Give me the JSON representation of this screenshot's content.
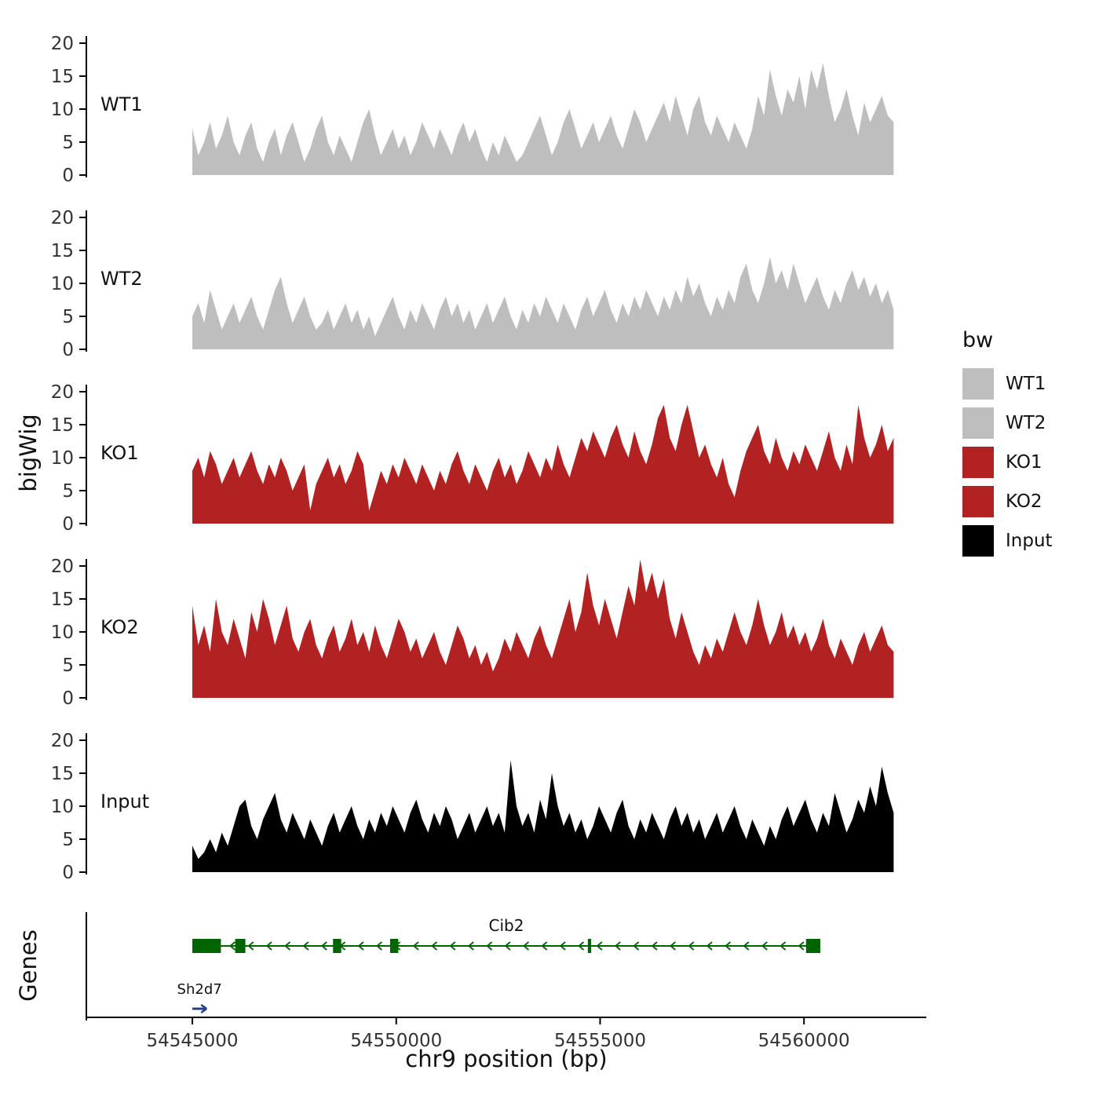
{
  "labels": {
    "y_axis": "bigWig",
    "genes_axis": "Genes",
    "x_axis": "chr9 position (bp)"
  },
  "legend": {
    "title": "bw",
    "items": [
      {
        "label": "WT1",
        "color": "#bebebe"
      },
      {
        "label": "WT2",
        "color": "#bebebe"
      },
      {
        "label": "KO1",
        "color": "#b22222"
      },
      {
        "label": "KO2",
        "color": "#b22222"
      },
      {
        "label": "Input",
        "color": "#000000"
      }
    ]
  },
  "chart_data": {
    "type": "area",
    "title": "",
    "xlabel": "chr9 position (bp)",
    "ylabel": "bigWig",
    "genes_label": "Genes",
    "legend_title": "bw",
    "panel_bp_range": [
      54542400,
      54563000
    ],
    "x_domain_bp": [
      54545000,
      54562200
    ],
    "x_ticks": [
      54545000,
      54550000,
      54555000,
      54560000
    ],
    "y_ticks": [
      0,
      5,
      10,
      15,
      20
    ],
    "ylim": [
      0,
      22
    ],
    "tracks": [
      {
        "name": "WT1",
        "color": "#bebebe",
        "values": [
          7,
          3,
          5,
          8,
          4,
          6,
          9,
          5,
          3,
          6,
          8,
          4,
          2,
          5,
          7,
          3,
          6,
          8,
          5,
          2,
          4,
          7,
          9,
          5,
          3,
          6,
          4,
          2,
          5,
          8,
          10,
          6,
          3,
          5,
          7,
          4,
          6,
          3,
          5,
          8,
          6,
          4,
          7,
          5,
          3,
          6,
          8,
          5,
          7,
          4,
          2,
          5,
          3,
          6,
          4,
          2,
          3,
          5,
          7,
          9,
          6,
          3,
          5,
          8,
          10,
          7,
          4,
          6,
          8,
          5,
          7,
          9,
          6,
          4,
          7,
          10,
          8,
          5,
          7,
          9,
          11,
          8,
          12,
          9,
          6,
          10,
          12,
          8,
          6,
          9,
          7,
          5,
          8,
          6,
          4,
          7,
          12,
          9,
          16,
          12,
          9,
          13,
          11,
          15,
          10,
          16,
          13,
          17,
          12,
          8,
          10,
          13,
          9,
          6,
          11,
          8,
          10,
          12,
          9,
          8
        ]
      },
      {
        "name": "WT2",
        "color": "#bebebe",
        "values": [
          5,
          7,
          4,
          9,
          6,
          3,
          5,
          7,
          4,
          6,
          8,
          5,
          3,
          6,
          9,
          11,
          7,
          4,
          6,
          8,
          5,
          3,
          4,
          6,
          3,
          5,
          7,
          4,
          6,
          3,
          5,
          2,
          4,
          6,
          8,
          5,
          3,
          6,
          4,
          7,
          5,
          3,
          6,
          8,
          5,
          7,
          4,
          6,
          3,
          5,
          7,
          4,
          6,
          8,
          5,
          3,
          6,
          4,
          7,
          5,
          8,
          6,
          4,
          7,
          5,
          3,
          6,
          8,
          5,
          7,
          9,
          6,
          4,
          7,
          5,
          8,
          6,
          9,
          7,
          5,
          8,
          6,
          9,
          7,
          11,
          8,
          10,
          7,
          5,
          8,
          6,
          9,
          7,
          11,
          13,
          9,
          7,
          10,
          14,
          10,
          12,
          9,
          13,
          10,
          7,
          9,
          11,
          8,
          6,
          9,
          7,
          10,
          12,
          9,
          11,
          8,
          10,
          7,
          9,
          6
        ]
      },
      {
        "name": "KO1",
        "color": "#b22222",
        "values": [
          8,
          10,
          7,
          11,
          9,
          6,
          8,
          10,
          7,
          9,
          11,
          8,
          6,
          9,
          7,
          10,
          8,
          5,
          7,
          9,
          2,
          6,
          8,
          10,
          7,
          9,
          6,
          8,
          11,
          9,
          2,
          5,
          8,
          6,
          9,
          7,
          10,
          8,
          6,
          9,
          7,
          5,
          8,
          6,
          9,
          11,
          8,
          6,
          9,
          7,
          5,
          8,
          10,
          7,
          9,
          6,
          8,
          11,
          9,
          7,
          10,
          8,
          12,
          9,
          7,
          10,
          13,
          11,
          14,
          12,
          10,
          13,
          15,
          12,
          10,
          14,
          11,
          9,
          12,
          16,
          18,
          13,
          11,
          15,
          18,
          14,
          10,
          12,
          9,
          7,
          10,
          6,
          4,
          8,
          11,
          13,
          15,
          11,
          9,
          13,
          10,
          8,
          11,
          9,
          12,
          10,
          8,
          11,
          14,
          10,
          8,
          12,
          9,
          18,
          13,
          10,
          12,
          15,
          11,
          13
        ]
      },
      {
        "name": "KO2",
        "color": "#b22222",
        "values": [
          14,
          8,
          11,
          7,
          15,
          10,
          8,
          12,
          9,
          6,
          13,
          10,
          15,
          12,
          8,
          11,
          14,
          9,
          7,
          10,
          12,
          8,
          6,
          9,
          11,
          7,
          9,
          12,
          8,
          10,
          7,
          11,
          8,
          6,
          9,
          12,
          10,
          7,
          9,
          6,
          8,
          10,
          7,
          5,
          8,
          11,
          9,
          6,
          8,
          5,
          7,
          4,
          6,
          9,
          7,
          10,
          8,
          6,
          9,
          11,
          8,
          6,
          9,
          12,
          15,
          10,
          13,
          19,
          14,
          11,
          15,
          12,
          9,
          13,
          17,
          14,
          21,
          16,
          19,
          15,
          18,
          12,
          9,
          13,
          10,
          7,
          5,
          8,
          6,
          9,
          7,
          10,
          13,
          10,
          8,
          11,
          15,
          11,
          8,
          10,
          13,
          9,
          11,
          8,
          10,
          7,
          9,
          12,
          8,
          6,
          9,
          7,
          5,
          8,
          10,
          7,
          9,
          11,
          8,
          7
        ]
      },
      {
        "name": "Input",
        "color": "#000000",
        "values": [
          4,
          2,
          3,
          5,
          3,
          6,
          4,
          7,
          10,
          11,
          7,
          5,
          8,
          10,
          12,
          8,
          6,
          9,
          7,
          5,
          8,
          6,
          4,
          7,
          9,
          6,
          8,
          10,
          7,
          5,
          8,
          6,
          9,
          7,
          10,
          8,
          6,
          9,
          11,
          8,
          6,
          9,
          7,
          10,
          8,
          5,
          7,
          9,
          6,
          8,
          10,
          7,
          9,
          6,
          17,
          10,
          7,
          9,
          6,
          11,
          8,
          15,
          10,
          7,
          9,
          6,
          8,
          5,
          7,
          10,
          8,
          6,
          9,
          11,
          7,
          5,
          8,
          6,
          9,
          7,
          5,
          8,
          10,
          7,
          9,
          6,
          8,
          5,
          7,
          9,
          6,
          8,
          10,
          7,
          5,
          8,
          6,
          4,
          7,
          5,
          8,
          10,
          7,
          9,
          11,
          8,
          6,
          9,
          7,
          12,
          9,
          6,
          8,
          11,
          9,
          13,
          10,
          16,
          12,
          9
        ]
      }
    ],
    "genes": [
      {
        "name": "Cib2",
        "color": "#006400",
        "strand": "-",
        "start": 54545000,
        "end": 54560400,
        "label_size": 20,
        "exons": [
          [
            54545000,
            54545700
          ],
          [
            54546050,
            54546300
          ],
          [
            54548450,
            54548650
          ],
          [
            54549850,
            54550050
          ],
          [
            54554700,
            54554780
          ],
          [
            54560050,
            54560400
          ]
        ]
      },
      {
        "name": "Sh2d7",
        "color": "#27408b",
        "strand": "+",
        "start": 54545000,
        "end": 54545350,
        "label_size": 18,
        "exons": []
      }
    ]
  }
}
